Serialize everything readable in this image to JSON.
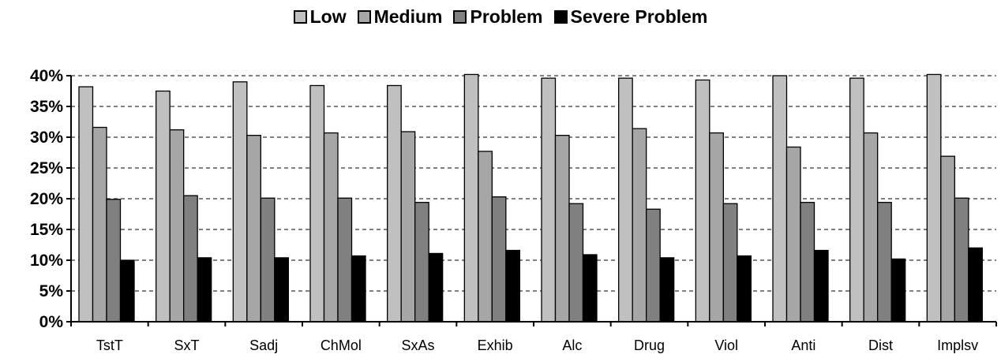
{
  "chart_data": {
    "type": "bar",
    "categories": [
      "TstT",
      "SxT",
      "Sadj",
      "ChMol",
      "SxAs",
      "Exhib",
      "Alc",
      "Drug",
      "Viol",
      "Anti",
      "Dist",
      "Implsv"
    ],
    "series": [
      {
        "name": "Low",
        "color": "#c0c0c0",
        "values": [
          38.2,
          37.5,
          39.0,
          38.4,
          38.4,
          40.2,
          39.6,
          39.6,
          39.3,
          40.0,
          39.6,
          40.7
        ]
      },
      {
        "name": "Medium",
        "color": "#a6a6a6",
        "values": [
          31.6,
          31.2,
          30.3,
          30.7,
          30.9,
          27.7,
          30.3,
          31.4,
          30.7,
          28.4,
          30.7,
          26.9
        ]
      },
      {
        "name": "Problem",
        "color": "#808080",
        "values": [
          19.9,
          20.5,
          20.1,
          20.1,
          19.4,
          20.3,
          19.2,
          18.3,
          19.2,
          19.4,
          19.4,
          20.1
        ]
      },
      {
        "name": "Severe Problem",
        "color": "#000000",
        "values": [
          10.0,
          10.4,
          10.4,
          10.7,
          11.1,
          11.6,
          10.9,
          10.4,
          10.7,
          11.6,
          10.2,
          12.0
        ]
      }
    ],
    "title": "",
    "xlabel": "",
    "ylabel": "",
    "ylim": [
      0,
      40
    ],
    "yticks": [
      "0%",
      "5%",
      "10%",
      "15%",
      "20%",
      "25%",
      "30%",
      "35%",
      "40%"
    ],
    "grid": "horizontal dashed",
    "legend_position": "top"
  }
}
